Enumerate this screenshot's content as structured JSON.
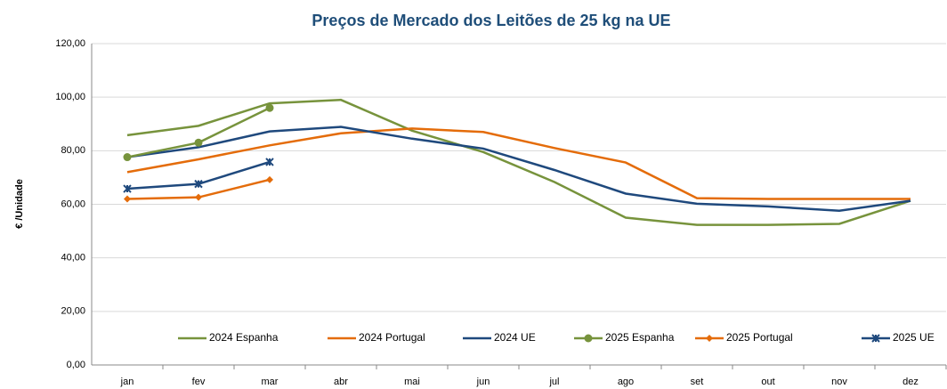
{
  "chart_data": {
    "type": "line",
    "title": "Preços de Mercado dos Leitões de 25 kg na UE",
    "y_label": "€ /Unidade",
    "categories": [
      "jan",
      "fev",
      "mar",
      "abr",
      "mai",
      "jun",
      "jul",
      "ago",
      "set",
      "out",
      "nov",
      "dez"
    ],
    "series": [
      {
        "name": "2024 Espanha",
        "color": "#77933c",
        "marker": "none",
        "values": [
          85.8,
          89.3,
          97.7,
          99,
          87.5,
          79.5,
          68.3,
          55,
          52.3,
          52.3,
          52.7,
          61.3
        ]
      },
      {
        "name": "2024 Portugal",
        "color": "#e46c0a",
        "marker": "none",
        "values": [
          72,
          76.8,
          82,
          86.5,
          88.3,
          87,
          81,
          75.6,
          62.3,
          62,
          62,
          62
        ]
      },
      {
        "name": "2024 UE",
        "color": "#1f497d",
        "marker": "none",
        "values": [
          77.6,
          81.3,
          87.2,
          88.9,
          84.5,
          80.8,
          72.8,
          64,
          60.2,
          59.2,
          57.6,
          61.3
        ]
      },
      {
        "name": "2025 Espanha",
        "color": "#77933c",
        "marker": "circle",
        "values": [
          77.6,
          83,
          96,
          null,
          null,
          null,
          null,
          null,
          null,
          null,
          null,
          null
        ]
      },
      {
        "name": "2025 Portugal",
        "color": "#e46c0a",
        "marker": "diamond",
        "values": [
          62,
          62.6,
          69.2,
          null,
          null,
          null,
          null,
          null,
          null,
          null,
          null,
          null
        ]
      },
      {
        "name": "2025 UE",
        "color": "#1f497d",
        "marker": "star",
        "values": [
          65.8,
          67.6,
          75.8,
          null,
          null,
          null,
          null,
          null,
          null,
          null,
          null,
          null
        ]
      }
    ],
    "ylim": [
      0,
      120
    ],
    "yticks": [
      {
        "value": 0,
        "label": "0,00"
      },
      {
        "value": 20,
        "label": "20,00"
      },
      {
        "value": 40,
        "label": "40,00"
      },
      {
        "value": 60,
        "label": "60,00"
      },
      {
        "value": 80,
        "label": "80,00"
      },
      {
        "value": 100,
        "label": "100,00"
      },
      {
        "value": 120,
        "label": "120,00"
      }
    ],
    "grid": true,
    "legend": "bottom"
  }
}
